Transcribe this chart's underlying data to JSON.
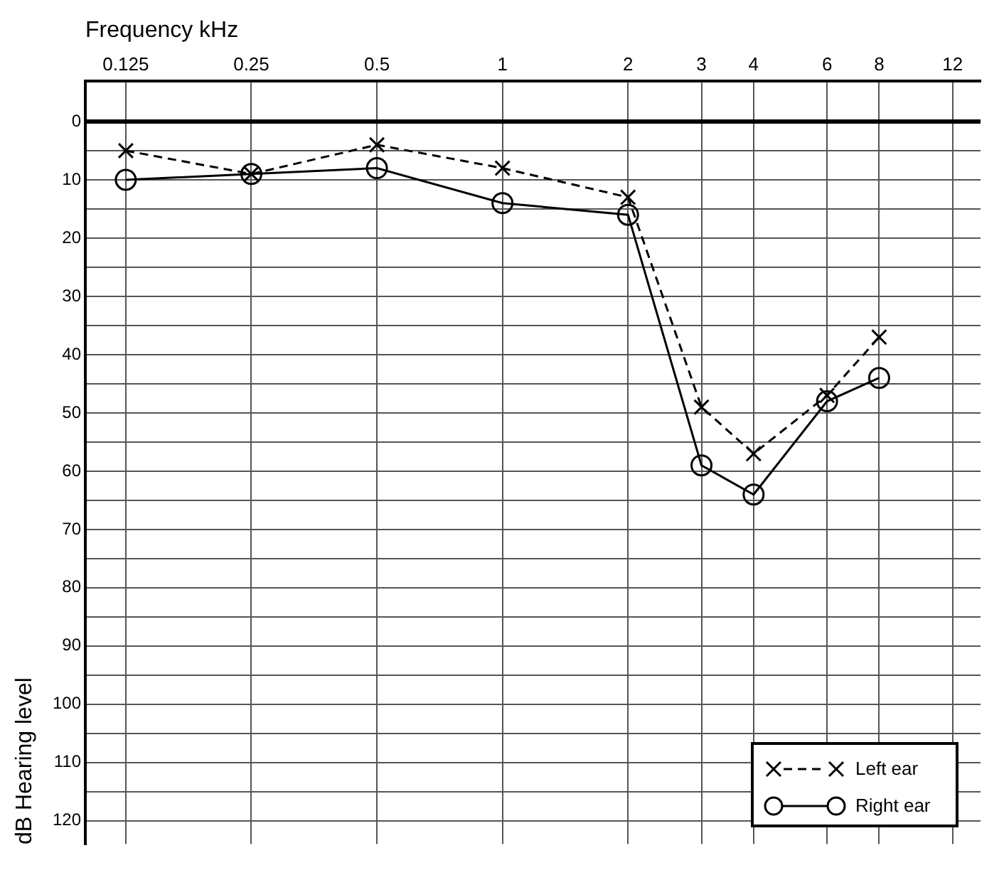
{
  "chart_data": {
    "type": "line",
    "xlabel": "Frequency kHz",
    "ylabel": "dB Hearing level",
    "log": "x",
    "x": [
      0.125,
      0.25,
      0.5,
      1,
      2,
      3,
      4,
      6,
      8
    ],
    "series": [
      {
        "name": "Left ear",
        "color": "#000000",
        "marker": "cross",
        "line_style": "dashed",
        "values": [
          5,
          9,
          4,
          8,
          13,
          49,
          57,
          47,
          37
        ]
      },
      {
        "name": "Right ear",
        "color": "#000000",
        "marker": "circle",
        "line_style": "solid",
        "values": [
          10,
          9,
          8,
          14,
          16,
          59,
          64,
          48,
          44
        ]
      }
    ],
    "xlim": [
      0.1,
      14
    ],
    "xticks": [
      0.125,
      0.25,
      0.5,
      1,
      2,
      3,
      4,
      6,
      8,
      12
    ],
    "ylim": [
      124,
      -7
    ],
    "yticks": [
      0,
      {
        "value": 5,
        "label": null
      },
      10,
      {
        "value": 15,
        "label": null
      },
      20,
      {
        "value": 25,
        "label": null
      },
      30,
      {
        "value": 35,
        "label": null
      },
      40,
      {
        "value": 45,
        "label": null
      },
      50,
      {
        "value": 55,
        "label": null
      },
      60,
      {
        "value": 65,
        "label": null
      },
      70,
      {
        "value": 75,
        "label": null
      },
      80,
      {
        "value": 85,
        "label": null
      },
      90,
      {
        "value": 95,
        "label": null
      },
      100,
      {
        "value": 105,
        "label": null
      },
      110,
      {
        "value": 115,
        "label": null
      },
      120
    ],
    "ref_lines": [
      {
        "axis": "y",
        "value": 0
      }
    ],
    "grid": true,
    "legend": "bottom right"
  }
}
